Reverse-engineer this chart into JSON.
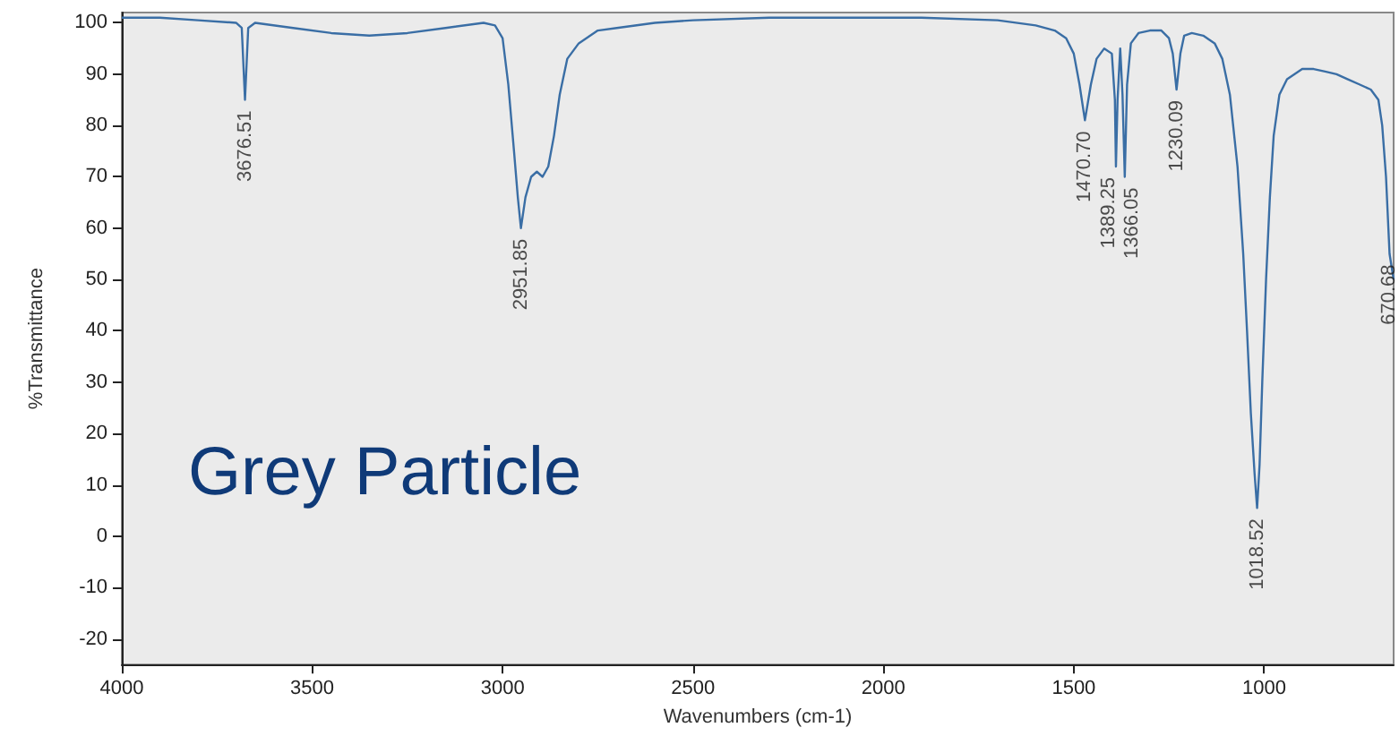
{
  "chart_data": {
    "type": "line",
    "xlabel": "Wavenumbers (cm-1)",
    "ylabel": "%Transmittance",
    "xlim": [
      4000,
      660
    ],
    "ylim": [
      -25,
      102
    ],
    "xticks": [
      4000,
      3500,
      3000,
      2500,
      2000,
      1500,
      1000
    ],
    "yticks": [
      -20,
      -10,
      0,
      10,
      20,
      30,
      40,
      50,
      60,
      70,
      80,
      90,
      100
    ],
    "grid": false,
    "marker": "none",
    "line_style": "solid",
    "series": [
      {
        "color": "#3a6ea5",
        "x": [
          4000,
          3900,
          3800,
          3700,
          3685,
          3676.51,
          3668,
          3650,
          3550,
          3450,
          3350,
          3250,
          3150,
          3050,
          3020,
          3000,
          2985,
          2970,
          2960,
          2951.85,
          2940,
          2925,
          2910,
          2895,
          2880,
          2865,
          2850,
          2830,
          2800,
          2750,
          2700,
          2600,
          2500,
          2300,
          2100,
          1900,
          1700,
          1600,
          1550,
          1520,
          1500,
          1485,
          1470.7,
          1455,
          1440,
          1420,
          1400,
          1392,
          1389.25,
          1385,
          1378,
          1372,
          1366.05,
          1360,
          1350,
          1330,
          1300,
          1270,
          1250,
          1240,
          1230.09,
          1220,
          1210,
          1190,
          1160,
          1130,
          1110,
          1090,
          1070,
          1055,
          1045,
          1035,
          1025,
          1018.52,
          1012,
          1005,
          995,
          985,
          975,
          960,
          940,
          920,
          900,
          870,
          840,
          810,
          780,
          750,
          720,
          700,
          690,
          680,
          670.68,
          660
        ],
        "values": [
          101,
          101,
          100.5,
          100,
          99,
          85,
          99,
          100,
          99,
          98,
          97.5,
          98,
          99,
          100,
          99.5,
          97,
          88,
          75,
          66,
          60,
          66,
          70,
          71,
          70,
          72,
          78,
          86,
          93,
          96,
          98.5,
          99,
          100,
          100.5,
          101,
          101,
          101,
          100.5,
          99.5,
          98.5,
          97,
          94,
          88,
          81,
          88,
          93,
          95,
          94,
          85,
          72,
          85,
          95,
          86,
          70,
          88,
          96,
          98,
          98.5,
          98.5,
          97,
          94,
          87,
          94,
          97.5,
          98,
          97.5,
          96,
          93,
          86,
          72,
          55,
          40,
          24,
          12,
          5.5,
          14,
          30,
          50,
          66,
          78,
          86,
          89,
          90,
          91,
          91,
          90.5,
          90,
          89,
          88,
          87,
          85,
          80,
          70,
          55,
          50
        ]
      }
    ],
    "annotations": [
      "Grey Particle",
      {
        "text": "3676.51",
        "x": 3676.51,
        "y": 85
      },
      {
        "text": "2951.85",
        "x": 2951.85,
        "y": 60
      },
      {
        "text": "1470.70",
        "x": 1470.7,
        "y": 81
      },
      {
        "text": "1389.25",
        "x": 1389.25,
        "y": 72
      },
      {
        "text": "1366.05",
        "x": 1366.05,
        "y": 70
      },
      {
        "text": "1230.09",
        "x": 1230.09,
        "y": 87
      },
      {
        "text": "1018.52",
        "x": 1018.52,
        "y": 5.5
      },
      {
        "text": "670.68",
        "x": 670.68,
        "y": 55
      }
    ]
  }
}
